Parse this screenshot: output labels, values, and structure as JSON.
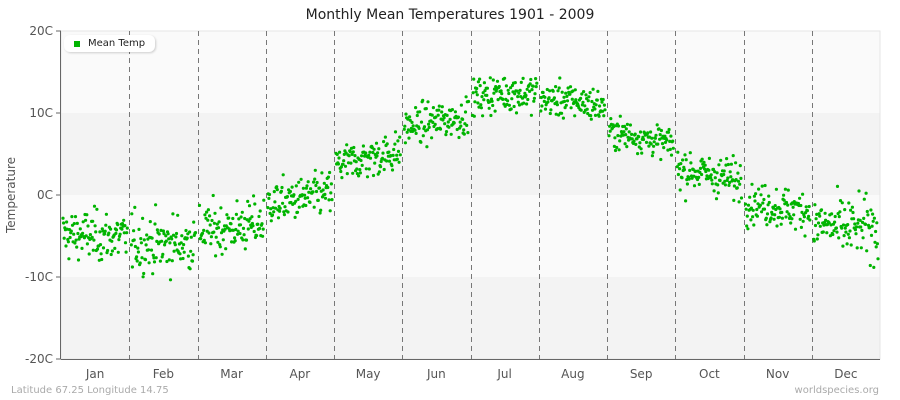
{
  "title": "Monthly Mean Temperatures 1901 - 2009",
  "footer": {
    "location": "Latitude 67.25 Longitude 14.75",
    "source": "worldspecies.org"
  },
  "legend": {
    "label": "Mean Temp",
    "color": "#00b400"
  },
  "colors": {
    "point": "#00b400",
    "band_light": "#fafafa",
    "band_dark": "#f3f3f3",
    "divider": "#777777",
    "axis": "#666666"
  },
  "chart_data": {
    "type": "scatter",
    "title": "Monthly Mean Temperatures 1901 - 2009",
    "xlabel": "",
    "ylabel": "Temperature",
    "ylim": [
      -20,
      20
    ],
    "yticks": [
      "20C",
      "10C",
      "0C",
      "-10C",
      "-20C"
    ],
    "categories": [
      "Jan",
      "Feb",
      "Mar",
      "Apr",
      "May",
      "Jun",
      "Jul",
      "Aug",
      "Sep",
      "Oct",
      "Nov",
      "Dec"
    ],
    "grid": "alternating horizontal bands, dashed vertical month dividers",
    "legend_position": "top-left",
    "series": [
      {
        "name": "Mean Temp",
        "points_per_month": 109,
        "approx_mean": [
          -5.0,
          -6.0,
          -4.0,
          -0.5,
          4.5,
          9.0,
          12.5,
          11.5,
          7.0,
          2.5,
          -1.5,
          -4.0
        ],
        "approx_min": [
          -10.5,
          -13.0,
          -9.5,
          -5.0,
          0.0,
          3.5,
          8.5,
          8.0,
          4.0,
          -2.0,
          -5.0,
          -11.5
        ],
        "approx_max": [
          0.8,
          -0.5,
          0.8,
          3.8,
          8.3,
          12.5,
          16.5,
          15.0,
          10.0,
          7.0,
          3.0,
          1.5
        ],
        "approx_spread": [
          2.0,
          2.3,
          2.0,
          1.7,
          1.6,
          1.5,
          1.5,
          1.4,
          1.2,
          1.6,
          1.6,
          2.3
        ]
      }
    ]
  }
}
